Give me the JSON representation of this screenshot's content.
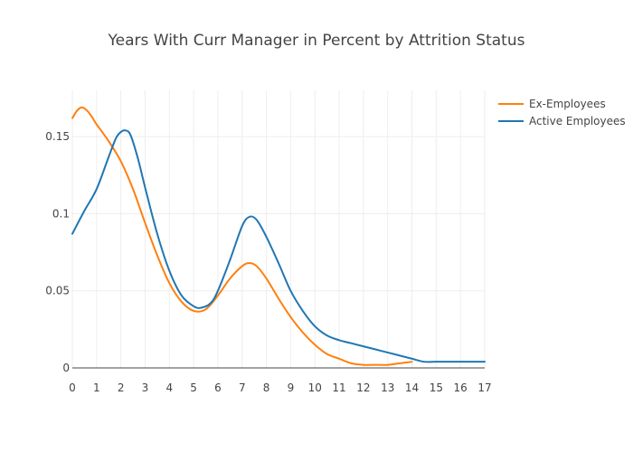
{
  "chart_data": {
    "type": "line",
    "title": "Years With Curr Manager in Percent by Attrition Status",
    "xlabel": "",
    "ylabel": "",
    "xlim": [
      0,
      17
    ],
    "ylim": [
      0,
      0.18
    ],
    "x_ticks": [
      0,
      1,
      2,
      3,
      4,
      5,
      6,
      7,
      8,
      9,
      10,
      11,
      12,
      13,
      14,
      15,
      16,
      17
    ],
    "y_ticks": [
      0,
      0.05,
      0.1,
      0.15
    ],
    "y_tick_labels": [
      "0",
      "0.05",
      "0.1",
      "0.15"
    ],
    "grid": true,
    "legend_position": "top-right",
    "series": [
      {
        "name": "Ex-Employees",
        "color": "#ff7f0e",
        "x": [
          0,
          0.2,
          0.4,
          0.6,
          0.8,
          1,
          1.5,
          2,
          2.5,
          3,
          3.5,
          4,
          4.5,
          5,
          5.5,
          6,
          6.5,
          7,
          7.3,
          7.6,
          8,
          8.5,
          9,
          9.5,
          10,
          10.5,
          11,
          11.5,
          12,
          12.5,
          13,
          13.5,
          14
        ],
        "y": [
          0.162,
          0.167,
          0.169,
          0.167,
          0.163,
          0.158,
          0.147,
          0.134,
          0.116,
          0.094,
          0.073,
          0.055,
          0.043,
          0.037,
          0.038,
          0.047,
          0.058,
          0.066,
          0.068,
          0.066,
          0.058,
          0.045,
          0.033,
          0.023,
          0.015,
          0.009,
          0.006,
          0.003,
          0.002,
          0.002,
          0.002,
          0.003,
          0.004
        ]
      },
      {
        "name": "Active Employees",
        "color": "#1f77b4",
        "x": [
          0,
          0.5,
          1,
          1.5,
          1.8,
          2,
          2.2,
          2.4,
          2.7,
          3,
          3.5,
          4,
          4.5,
          5,
          5.3,
          5.7,
          6,
          6.5,
          7,
          7.3,
          7.6,
          8,
          8.5,
          9,
          9.5,
          10,
          10.5,
          11,
          11.5,
          12,
          12.5,
          13,
          13.5,
          14,
          14.5,
          15,
          15.5,
          16,
          17
        ],
        "y": [
          0.087,
          0.102,
          0.116,
          0.137,
          0.149,
          0.153,
          0.154,
          0.151,
          0.136,
          0.117,
          0.087,
          0.063,
          0.047,
          0.04,
          0.039,
          0.042,
          0.05,
          0.07,
          0.092,
          0.098,
          0.096,
          0.085,
          0.068,
          0.05,
          0.037,
          0.027,
          0.021,
          0.018,
          0.016,
          0.014,
          0.012,
          0.01,
          0.008,
          0.006,
          0.004,
          0.004,
          0.004,
          0.004,
          0.004
        ]
      }
    ]
  }
}
